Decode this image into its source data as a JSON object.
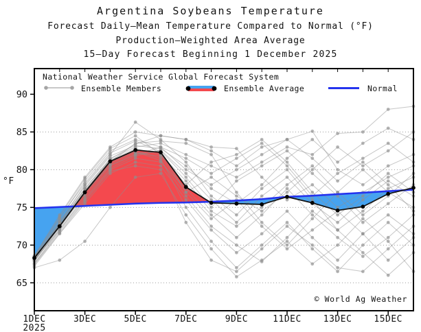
{
  "header": {
    "title": "Argentina Soybeans Temperature",
    "subtitle1": "Forecast Daily–Mean Temperature Compared to Normal (°F)",
    "subtitle2": "Production–Weighted Area Average",
    "subtitle3": "15–Day Forecast Beginning 1 December 2025"
  },
  "legend": {
    "line1": "National Weather Service Global Forecast System",
    "ensemble_members_label": "Ensemble Members",
    "ensemble_average_label": "Ensemble Average",
    "normal_label": "Normal"
  },
  "watermark": "© World Ag Weather",
  "axes": {
    "ylabel": "°F",
    "y_ticks": [
      65,
      70,
      75,
      80,
      85,
      90
    ],
    "y_gridline_max": 85,
    "x_ticks": [
      {
        "day": 1,
        "label": "1DEC",
        "sublabel": "2025"
      },
      {
        "day": 3,
        "label": "3DEC"
      },
      {
        "day": 5,
        "label": "5DEC"
      },
      {
        "day": 7,
        "label": "7DEC"
      },
      {
        "day": 9,
        "label": "9DEC"
      },
      {
        "day": 11,
        "label": "11DEC"
      },
      {
        "day": 13,
        "label": "13DEC"
      },
      {
        "day": 15,
        "label": "15DEC"
      }
    ]
  },
  "colors": {
    "above_normal_fill": "#f4494e",
    "below_normal_fill": "#46a3f0",
    "normal_line": "#2433ee",
    "average_line": "#141414",
    "member_line": "#8f8f8f",
    "gridline": "#9a9a9a",
    "frame": "#000000"
  },
  "chart_data": {
    "type": "line",
    "title": "Argentina Soybeans Temperature",
    "ylabel": "°F",
    "ylim": [
      61.3,
      93.4
    ],
    "grid": "horizontal dotted at 65,70,75,80,85",
    "legend_position": "top inside",
    "x_days": [
      1,
      2,
      3,
      4,
      5,
      6,
      7,
      8,
      9,
      10,
      11,
      12,
      13,
      14,
      15,
      16
    ],
    "series": [
      {
        "name": "Ensemble Average",
        "values": [
          68.3,
          72.5,
          77.0,
          81.1,
          82.6,
          82.3,
          77.7,
          75.6,
          75.5,
          75.4,
          76.4,
          75.6,
          74.6,
          75.1,
          76.8,
          77.6
        ]
      },
      {
        "name": "Normal",
        "values": [
          74.9,
          75.05,
          75.2,
          75.35,
          75.5,
          75.6,
          75.65,
          75.75,
          75.9,
          76.1,
          76.4,
          76.55,
          76.75,
          76.95,
          77.15,
          77.35
        ]
      }
    ],
    "ensemble_members": {
      "name": "Ensemble Members",
      "series": [
        [
          68.0,
          72.8,
          77.5,
          81.5,
          83.0,
          83.5,
          82.0,
          80.5,
          79.0,
          81.0,
          83.0,
          82.0,
          84.8,
          85.0,
          88.0,
          88.4
        ],
        [
          68.4,
          73.5,
          78.5,
          82.5,
          84.0,
          83.0,
          80.0,
          78.0,
          80.0,
          82.0,
          84.0,
          85.1,
          80.0,
          78.0,
          80.5,
          82.0
        ],
        [
          68.6,
          74.0,
          79.0,
          83.0,
          85.0,
          84.5,
          84.0,
          83.0,
          82.8,
          79.0,
          76.0,
          78.0,
          75.0,
          77.0,
          79.0,
          80.5
        ],
        [
          68.2,
          73.0,
          78.0,
          82.0,
          86.3,
          84.0,
          81.0,
          76.5,
          74.0,
          77.5,
          80.0,
          76.0,
          72.0,
          74.5,
          77.5,
          79.0
        ],
        [
          67.8,
          72.5,
          77.0,
          81.0,
          83.5,
          83.8,
          83.5,
          82.0,
          77.0,
          73.0,
          70.0,
          73.5,
          77.0,
          80.0,
          77.0,
          75.0
        ],
        [
          68.0,
          72.0,
          76.5,
          80.5,
          82.0,
          82.5,
          79.0,
          75.0,
          78.5,
          80.5,
          82.5,
          79.5,
          76.5,
          73.0,
          75.5,
          78.0
        ],
        [
          67.5,
          71.8,
          76.0,
          80.0,
          81.5,
          81.0,
          77.5,
          74.0,
          71.0,
          74.0,
          77.5,
          74.0,
          71.0,
          68.5,
          71.0,
          74.0
        ],
        [
          68.5,
          73.8,
          78.8,
          82.8,
          84.5,
          82.0,
          78.0,
          81.0,
          82.0,
          84.0,
          81.0,
          77.0,
          74.0,
          76.5,
          79.5,
          77.0
        ],
        [
          67.2,
          71.5,
          75.5,
          79.5,
          81.0,
          80.5,
          76.0,
          72.0,
          69.0,
          71.5,
          74.5,
          71.0,
          68.0,
          71.5,
          74.0,
          71.5
        ],
        [
          68.1,
          72.6,
          77.2,
          81.2,
          82.5,
          81.5,
          75.0,
          70.5,
          67.0,
          70.0,
          73.0,
          69.5,
          66.5,
          70.0,
          73.0,
          70.0
        ],
        [
          67.0,
          68.0,
          70.5,
          75.0,
          79.0,
          79.5,
          74.0,
          69.5,
          65.8,
          68.0,
          70.5,
          67.5,
          70.0,
          73.5,
          70.5,
          66.5
        ],
        [
          68.3,
          73.2,
          77.8,
          81.8,
          83.2,
          82.8,
          80.5,
          77.5,
          75.5,
          78.0,
          81.5,
          84.0,
          81.0,
          83.5,
          85.5,
          84.0
        ],
        [
          68.4,
          73.0,
          77.5,
          81.3,
          82.8,
          82.0,
          78.5,
          74.5,
          72.5,
          75.0,
          78.0,
          80.5,
          77.0,
          74.0,
          76.5,
          79.5
        ],
        [
          67.9,
          72.2,
          76.8,
          80.8,
          82.2,
          81.8,
          77.0,
          73.5,
          76.0,
          72.5,
          69.5,
          72.0,
          74.5,
          71.5,
          68.0,
          71.0
        ],
        [
          68.0,
          72.4,
          77.0,
          80.6,
          82.0,
          83.0,
          81.5,
          79.5,
          81.5,
          83.5,
          80.5,
          76.5,
          79.5,
          81.5,
          83.5,
          81.0
        ],
        [
          68.2,
          72.9,
          77.3,
          81.0,
          82.4,
          81.2,
          76.5,
          72.5,
          70.0,
          67.8,
          71.0,
          74.5,
          72.0,
          69.0,
          66.0,
          69.0
        ],
        [
          67.6,
          72.0,
          76.2,
          80.2,
          81.8,
          82.6,
          79.5,
          76.0,
          73.0,
          76.5,
          79.0,
          75.5,
          73.0,
          76.0,
          78.5,
          76.5
        ],
        [
          68.5,
          73.6,
          78.2,
          82.2,
          83.8,
          82.4,
          77.0,
          79.0,
          76.5,
          74.5,
          77.0,
          80.0,
          83.0,
          80.5,
          82.5,
          85.0
        ],
        [
          67.4,
          71.6,
          75.8,
          79.8,
          80.5,
          80.0,
          73.0,
          68.0,
          66.5,
          69.5,
          72.5,
          70.0,
          67.0,
          66.5,
          69.5,
          72.5
        ],
        [
          68.1,
          72.7,
          77.1,
          81.4,
          83.4,
          84.5,
          84.0,
          82.5,
          80.5,
          83.0,
          84.0,
          81.5,
          78.5,
          81.0,
          78.0,
          74.5
        ]
      ]
    }
  }
}
